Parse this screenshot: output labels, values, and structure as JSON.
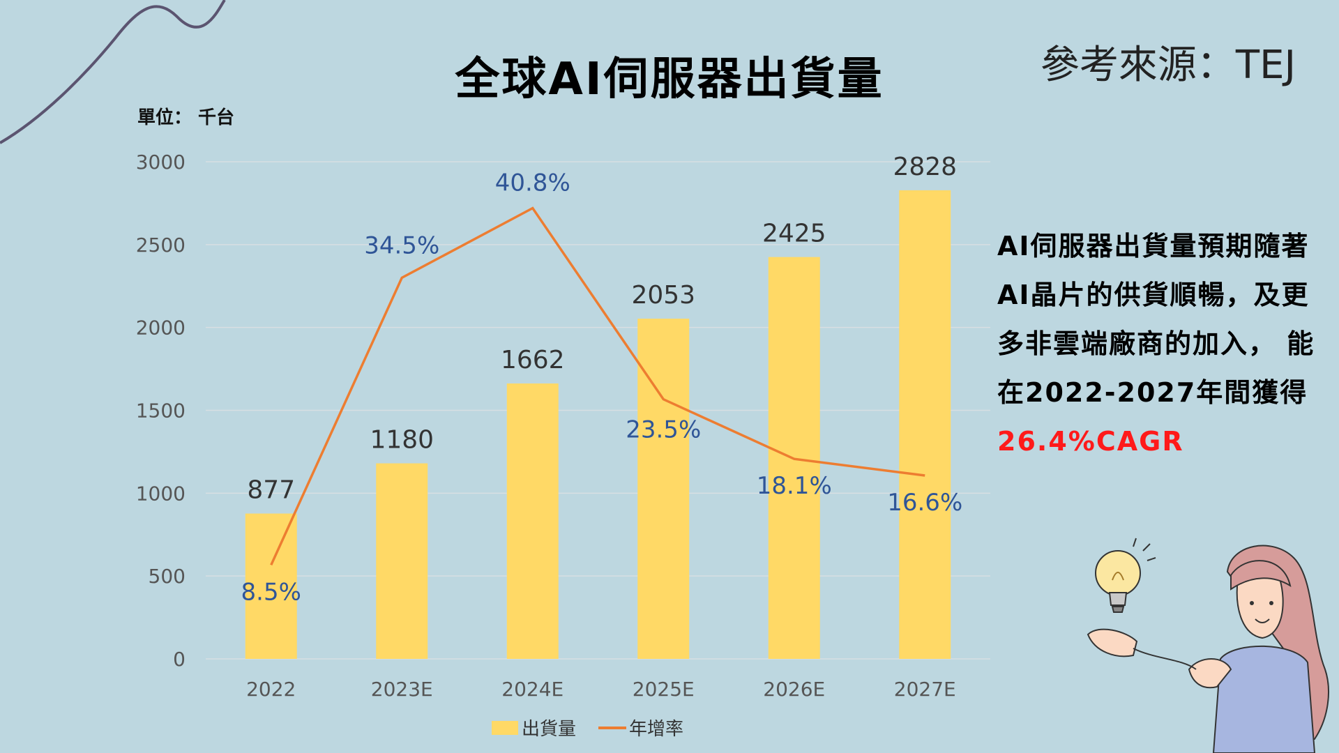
{
  "title": "全球AI伺服器出貨量",
  "source": "參考來源：TEJ",
  "unit": "單位： 千台",
  "note": {
    "text": "AI伺服器出貨量預期隨著AI晶片的供貨順暢，及更多非雲端廠商的加入， 能在2022-2027年間獲得",
    "highlight": "26.4%CAGR"
  },
  "colors": {
    "bar": "#ffd966",
    "line": "#ed7d31",
    "rate_label": "#2f5597",
    "highlight": "#ff1a1a"
  },
  "chart_data": {
    "type": "bar",
    "categories": [
      "2022",
      "2023E",
      "2024E",
      "2025E",
      "2026E",
      "2027E"
    ],
    "series": [
      {
        "name": "出貨量",
        "type": "bar",
        "values": [
          877,
          1180,
          1662,
          2053,
          2425,
          2828
        ],
        "labels": [
          "877",
          "1180",
          "1662",
          "2053",
          "2425",
          "2828"
        ]
      },
      {
        "name": "年增率",
        "type": "line",
        "values": [
          8.5,
          34.5,
          40.8,
          23.5,
          18.1,
          16.6
        ],
        "labels": [
          "8.5%",
          "34.5%",
          "40.8%",
          "23.5%",
          "18.1%",
          "16.6%"
        ]
      }
    ],
    "ylim": [
      0,
      3000
    ],
    "yticks": [
      "0",
      "500",
      "1000",
      "1500",
      "2000",
      "2500",
      "3000"
    ],
    "y2lim": [
      0,
      45
    ],
    "grid": true,
    "legend": "bottom"
  }
}
